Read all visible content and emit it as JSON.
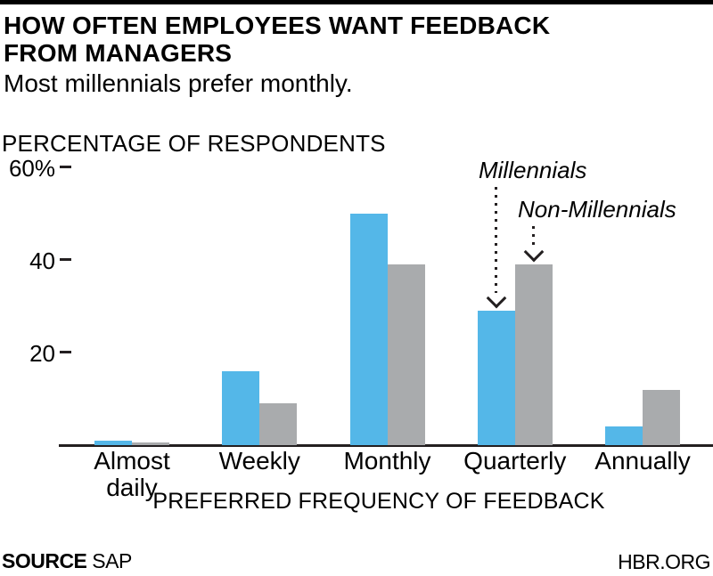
{
  "header": {
    "title_line1": "HOW OFTEN EMPLOYEES WANT FEEDBACK",
    "title_line2": "FROM MANAGERS",
    "subtitle": "Most millennials prefer monthly."
  },
  "chart_data": {
    "type": "bar",
    "title": "HOW OFTEN EMPLOYEES WANT FEEDBACK FROM MANAGERS",
    "subtitle": "Most millennials prefer monthly.",
    "ylabel": "PERCENTAGE OF RESPONDENTS",
    "xlabel": "PREFERRED FREQUENCY OF FEEDBACK",
    "categories": [
      "Almost daily",
      "Weekly",
      "Monthly",
      "Quarterly",
      "Annually"
    ],
    "series": [
      {
        "name": "Millennials",
        "color": "#54B7E8",
        "values": [
          1,
          16,
          50,
          29,
          4
        ]
      },
      {
        "name": "Non-Millennials",
        "color": "#A9ABAD",
        "values": [
          0.5,
          9,
          39,
          39,
          12
        ]
      }
    ],
    "ylim": [
      0,
      60
    ],
    "y_ticks": [
      {
        "value": 60,
        "label": "60%"
      },
      {
        "value": 40,
        "label": "40"
      },
      {
        "value": 20,
        "label": "20"
      }
    ],
    "grid": false,
    "legend_position": "in-plot annotations with dotted arrows pointing at the Quarterly bars"
  },
  "annotations": [
    {
      "label": "Millennials",
      "series": 0,
      "category": 3
    },
    {
      "label": "Non-Millennials",
      "series": 1,
      "category": 3
    }
  ],
  "footer": {
    "source_label": "SOURCE",
    "source_value": "SAP",
    "site": "HBR.ORG"
  }
}
